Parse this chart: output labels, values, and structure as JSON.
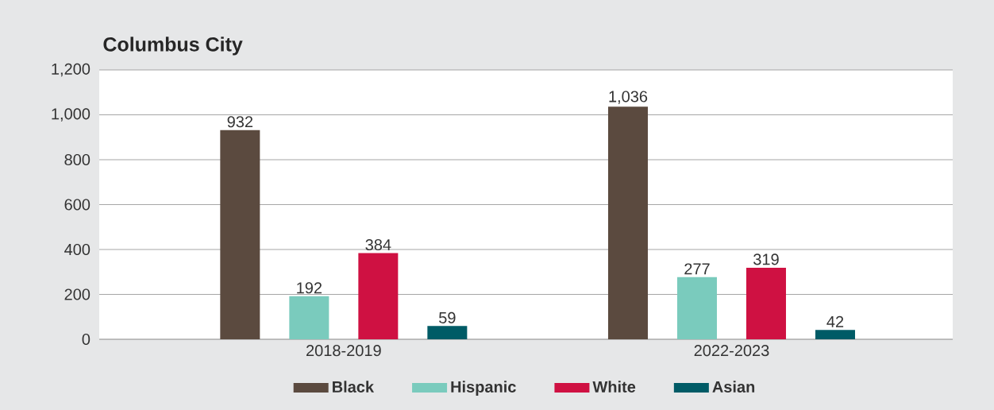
{
  "chart_data": {
    "type": "bar",
    "title": "Columbus City",
    "categories": [
      "2018-2019",
      "2022-2023"
    ],
    "series": [
      {
        "name": "Black",
        "color": "#5b4a3f",
        "values": [
          932,
          1036
        ],
        "value_labels": [
          "932",
          "1,036"
        ]
      },
      {
        "name": "Hispanic",
        "color": "#7acbbd",
        "values": [
          192,
          277
        ],
        "value_labels": [
          "192",
          "277"
        ]
      },
      {
        "name": "White",
        "color": "#cf1142",
        "values": [
          384,
          319
        ],
        "value_labels": [
          "384",
          "319"
        ]
      },
      {
        "name": "Asian",
        "color": "#005b66",
        "values": [
          59,
          42
        ],
        "value_labels": [
          "59",
          "42"
        ]
      }
    ],
    "ylim": [
      0,
      1200
    ],
    "yticks": [
      0,
      200,
      400,
      600,
      800,
      {
        "value": 1000,
        "label": "1,000"
      },
      {
        "value": 1200,
        "label": "1,200"
      }
    ],
    "grid": "y",
    "legend": "bottom"
  }
}
